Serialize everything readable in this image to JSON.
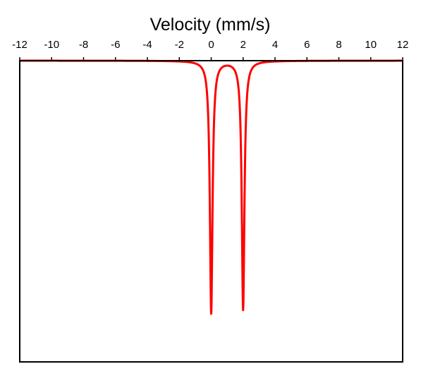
{
  "chart_data": {
    "type": "line",
    "title": "",
    "xlabel": "Velocity (mm/s)",
    "ylabel": "",
    "x_axis_position": "top",
    "xlim": [
      -12,
      12
    ],
    "xticks": [
      -12,
      -10,
      -8,
      -6,
      -4,
      -2,
      0,
      2,
      4,
      6,
      8,
      10,
      12
    ],
    "ylim": [
      0.189,
      1.0
    ],
    "y_tick_labels_shown": false,
    "grid": false,
    "legend": "none",
    "series": [
      {
        "color": "#ff0000",
        "model": "doublet",
        "baseline": 1.0,
        "peaks": [
          {
            "center": 0.0,
            "depth": 0.68,
            "hwhm": 0.1
          },
          {
            "center": 2.0,
            "depth": 0.67,
            "hwhm": 0.1
          }
        ],
        "x": [
          -12,
          -4,
          -2,
          -1,
          -0.5,
          -0.3,
          -0.2,
          -0.1,
          0,
          0.1,
          0.2,
          0.3,
          0.5,
          0.7,
          1.0,
          1.3,
          1.5,
          1.7,
          1.8,
          1.9,
          2.0,
          2.1,
          2.2,
          2.3,
          2.5,
          3,
          4,
          6,
          12
        ],
        "y": [
          0.999,
          0.991,
          0.981,
          0.966,
          0.924,
          0.855,
          0.772,
          0.657,
          0.317,
          0.656,
          0.771,
          0.853,
          0.92,
          0.942,
          0.947,
          0.941,
          0.918,
          0.846,
          0.761,
          0.647,
          0.313,
          0.651,
          0.772,
          0.86,
          0.929,
          0.967,
          0.988,
          0.996,
          0.999
        ]
      }
    ]
  }
}
